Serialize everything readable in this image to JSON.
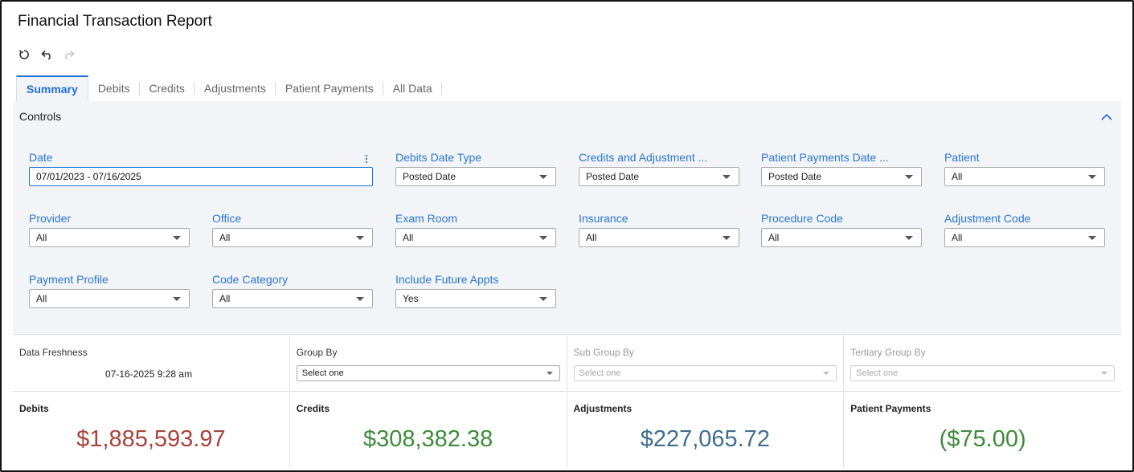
{
  "report": {
    "title": "Financial Transaction Report"
  },
  "toolbar": {
    "refresh": "refresh-icon",
    "undo": "undo-icon",
    "redo": "redo-icon"
  },
  "tabs": [
    {
      "label": "Summary",
      "active": true
    },
    {
      "label": "Debits"
    },
    {
      "label": "Credits"
    },
    {
      "label": "Adjustments"
    },
    {
      "label": "Patient Payments"
    },
    {
      "label": "All Data"
    }
  ],
  "controls": {
    "title": "Controls",
    "date": {
      "label": "Date",
      "value": "07/01/2023 - 07/16/2025"
    },
    "debits_date_type": {
      "label": "Debits Date Type",
      "value": "Posted Date"
    },
    "credits_adjustment": {
      "label": "Credits and Adjustment ...",
      "value": "Posted Date"
    },
    "patient_payments_date": {
      "label": "Patient Payments Date ...",
      "value": "Posted Date"
    },
    "patient": {
      "label": "Patient",
      "value": "All"
    },
    "provider": {
      "label": "Provider",
      "value": "All"
    },
    "office": {
      "label": "Office",
      "value": "All"
    },
    "exam_room": {
      "label": "Exam Room",
      "value": "All"
    },
    "insurance": {
      "label": "Insurance",
      "value": "All"
    },
    "procedure_code": {
      "label": "Procedure Code",
      "value": "All"
    },
    "adjustment_code": {
      "label": "Adjustment Code",
      "value": "All"
    },
    "payment_profile": {
      "label": "Payment Profile",
      "value": "All"
    },
    "code_category": {
      "label": "Code Category",
      "value": "All"
    },
    "include_future": {
      "label": "Include Future Appts",
      "value": "Yes"
    }
  },
  "info": {
    "freshness_label": "Data Freshness",
    "freshness_value": "07-16-2025 9:28 am",
    "group_by": {
      "label": "Group By",
      "placeholder": "Select one"
    },
    "sub_group_by": {
      "label": "Sub Group By",
      "placeholder": "Select one"
    },
    "tertiary_group_by": {
      "label": "Tertiary Group By",
      "placeholder": "Select one"
    }
  },
  "kpis": [
    {
      "label": "Debits",
      "value": "$1,885,593.97",
      "color": "#a8423a"
    },
    {
      "label": "Credits",
      "value": "$308,382.38",
      "color": "#3f8a3c"
    },
    {
      "label": "Adjustments",
      "value": "$227,065.72",
      "color": "#3f6d8e"
    },
    {
      "label": "Patient Payments",
      "value": "($75.00)",
      "color": "#3f8a3c"
    }
  ]
}
